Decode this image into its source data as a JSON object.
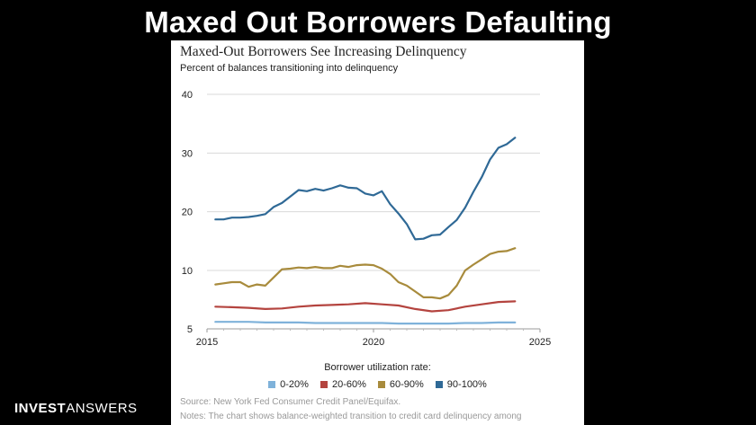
{
  "slide": {
    "title": "Maxed Out Borrowers Defaulting",
    "brand_bold": "INVEST",
    "brand_light": "ANSWERS"
  },
  "chart_data": {
    "type": "line",
    "title": "Maxed-Out Borrowers See Increasing Delinquency",
    "subtitle": "Percent of balances transitioning into delinquency",
    "xlabel": "",
    "ylabel": "",
    "xlim": [
      2015,
      2025
    ],
    "ylim": [
      5,
      40
    ],
    "x_ticks": [
      2015,
      2020,
      2025
    ],
    "y_ticks": [
      5,
      10,
      20,
      30,
      40
    ],
    "y_scale_note": "axis spacing: 5-10 half step, 10-40 linear",
    "grid": true,
    "legend_title": "Borrower utilization rate:",
    "legend_position": "bottom",
    "series": [
      {
        "name": "0-20%",
        "color": "#7fb2da",
        "points": [
          [
            2015.25,
            5.6
          ],
          [
            2015.75,
            5.6
          ],
          [
            2016.25,
            5.6
          ],
          [
            2016.75,
            5.55
          ],
          [
            2017.25,
            5.55
          ],
          [
            2017.75,
            5.55
          ],
          [
            2018.25,
            5.5
          ],
          [
            2018.75,
            5.5
          ],
          [
            2019.25,
            5.5
          ],
          [
            2019.75,
            5.5
          ],
          [
            2020.25,
            5.5
          ],
          [
            2020.75,
            5.45
          ],
          [
            2021.25,
            5.45
          ],
          [
            2021.75,
            5.45
          ],
          [
            2022.25,
            5.45
          ],
          [
            2022.75,
            5.5
          ],
          [
            2023.25,
            5.5
          ],
          [
            2023.75,
            5.55
          ],
          [
            2024.25,
            5.55
          ]
        ]
      },
      {
        "name": "20-60%",
        "color": "#b4443f",
        "points": [
          [
            2015.25,
            6.9
          ],
          [
            2015.75,
            6.85
          ],
          [
            2016.25,
            6.8
          ],
          [
            2016.75,
            6.7
          ],
          [
            2017.25,
            6.75
          ],
          [
            2017.75,
            6.9
          ],
          [
            2018.25,
            7.0
          ],
          [
            2018.75,
            7.05
          ],
          [
            2019.25,
            7.1
          ],
          [
            2019.75,
            7.2
          ],
          [
            2020.25,
            7.1
          ],
          [
            2020.75,
            7.0
          ],
          [
            2021.25,
            6.7
          ],
          [
            2021.75,
            6.5
          ],
          [
            2022.25,
            6.6
          ],
          [
            2022.75,
            6.9
          ],
          [
            2023.25,
            7.1
          ],
          [
            2023.75,
            7.3
          ],
          [
            2024.25,
            7.35
          ]
        ]
      },
      {
        "name": "60-90%",
        "color": "#a88b3c",
        "points": [
          [
            2015.25,
            8.8
          ],
          [
            2015.5,
            8.9
          ],
          [
            2015.75,
            9.0
          ],
          [
            2016.0,
            9.0
          ],
          [
            2016.25,
            8.6
          ],
          [
            2016.5,
            8.8
          ],
          [
            2016.75,
            8.7
          ],
          [
            2017.0,
            9.4
          ],
          [
            2017.25,
            10.2
          ],
          [
            2017.5,
            10.3
          ],
          [
            2017.75,
            10.5
          ],
          [
            2018.0,
            10.4
          ],
          [
            2018.25,
            10.6
          ],
          [
            2018.5,
            10.4
          ],
          [
            2018.75,
            10.4
          ],
          [
            2019.0,
            10.8
          ],
          [
            2019.25,
            10.6
          ],
          [
            2019.5,
            10.9
          ],
          [
            2019.75,
            11.0
          ],
          [
            2020.0,
            10.9
          ],
          [
            2020.25,
            10.3
          ],
          [
            2020.5,
            9.7
          ],
          [
            2020.75,
            9.0
          ],
          [
            2021.0,
            8.7
          ],
          [
            2021.25,
            8.2
          ],
          [
            2021.5,
            7.7
          ],
          [
            2021.75,
            7.7
          ],
          [
            2022.0,
            7.6
          ],
          [
            2022.25,
            7.9
          ],
          [
            2022.5,
            8.7
          ],
          [
            2022.75,
            10.0
          ],
          [
            2023.0,
            11.0
          ],
          [
            2023.25,
            11.9
          ],
          [
            2023.5,
            12.8
          ],
          [
            2023.75,
            13.2
          ],
          [
            2024.0,
            13.3
          ],
          [
            2024.25,
            13.8
          ]
        ]
      },
      {
        "name": "90-100%",
        "color": "#2f6996",
        "points": [
          [
            2015.25,
            18.7
          ],
          [
            2015.5,
            18.7
          ],
          [
            2015.75,
            19.0
          ],
          [
            2016.0,
            19.0
          ],
          [
            2016.25,
            19.1
          ],
          [
            2016.5,
            19.3
          ],
          [
            2016.75,
            19.6
          ],
          [
            2017.0,
            20.8
          ],
          [
            2017.25,
            21.5
          ],
          [
            2017.5,
            22.6
          ],
          [
            2017.75,
            23.7
          ],
          [
            2018.0,
            23.5
          ],
          [
            2018.25,
            23.9
          ],
          [
            2018.5,
            23.6
          ],
          [
            2018.75,
            24.0
          ],
          [
            2019.0,
            24.5
          ],
          [
            2019.25,
            24.1
          ],
          [
            2019.5,
            24.0
          ],
          [
            2019.75,
            23.1
          ],
          [
            2020.0,
            22.8
          ],
          [
            2020.25,
            23.5
          ],
          [
            2020.5,
            21.3
          ],
          [
            2020.75,
            19.7
          ],
          [
            2021.0,
            17.9
          ],
          [
            2021.25,
            15.3
          ],
          [
            2021.5,
            15.4
          ],
          [
            2021.75,
            16.0
          ],
          [
            2022.0,
            16.1
          ],
          [
            2022.25,
            17.4
          ],
          [
            2022.5,
            18.6
          ],
          [
            2022.75,
            20.7
          ],
          [
            2023.0,
            23.4
          ],
          [
            2023.25,
            25.9
          ],
          [
            2023.5,
            28.9
          ],
          [
            2023.75,
            30.9
          ],
          [
            2024.0,
            31.5
          ],
          [
            2024.25,
            32.6
          ]
        ]
      }
    ],
    "source": "Source: New York Fed Consumer Credit Panel/Equifax.",
    "notes": "Notes: The chart shows balance-weighted transition to credit card delinquency among"
  }
}
